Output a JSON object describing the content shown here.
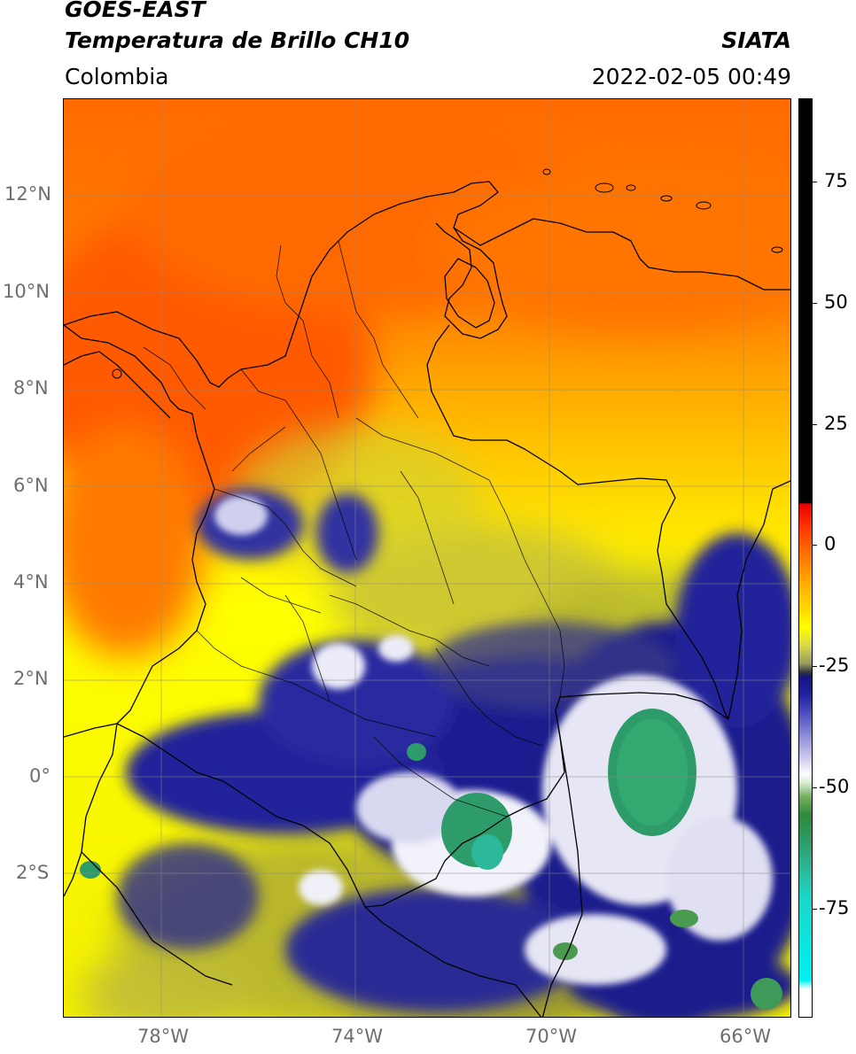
{
  "header": {
    "satellite": "GOES-EAST",
    "product": "Temperatura de Brillo CH10",
    "region": "Colombia",
    "agency": "SIATA",
    "datetime": "2022-02-05 00:49"
  },
  "map": {
    "lon_range": [
      -80,
      -65
    ],
    "lat_range": [
      -5,
      14
    ],
    "lat_ticks": [
      "12°N",
      "10°N",
      "8°N",
      "6°N",
      "4°N",
      "2°N",
      "0°",
      "2°S"
    ],
    "lon_ticks": [
      "78°W",
      "74°W",
      "70°W",
      "66°W"
    ],
    "colors": {
      "warm_red": "#ff5000",
      "orange": "#ff8c00",
      "yellow": "#ffff00",
      "olive": "#b8b830",
      "navy": "#1a1a8c",
      "white": "#ffffff",
      "green": "#2e9c6a",
      "border": "#000000",
      "grid": "#999999"
    }
  },
  "colorbar": {
    "ticks": [
      "75",
      "50",
      "25",
      "0",
      "-25",
      "-50",
      "-75"
    ]
  }
}
